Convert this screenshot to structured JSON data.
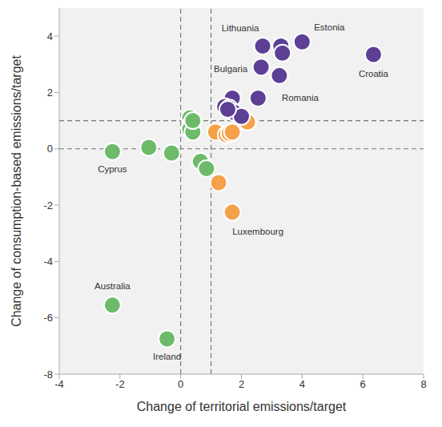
{
  "chart_data": {
    "type": "scatter",
    "x_label": "Change of territorial emissions/target",
    "y_label": "Change of consumption-based emissions/target",
    "xlim": [
      -4,
      8
    ],
    "ylim": [
      -8,
      5
    ],
    "xticks": [
      -4,
      -2,
      0,
      2,
      4,
      6,
      8
    ],
    "yticks": [
      -8,
      -6,
      -4,
      -2,
      0,
      2,
      4
    ],
    "grid": false,
    "reference_lines": {
      "x": [
        0,
        1
      ],
      "y": [
        0,
        1
      ]
    },
    "series": [
      {
        "color": "#6dbb6a",
        "marker": "circle",
        "x": [
          -2.25,
          -1.05,
          -0.3,
          0.65,
          0.85,
          0.3,
          0.35,
          0.3,
          0.4,
          0.4,
          -2.25,
          -0.45
        ],
        "y": [
          -0.1,
          0.05,
          -0.15,
          -0.45,
          -0.7,
          1.1,
          0.9,
          0.7,
          0.6,
          1.0,
          -5.55,
          -6.75
        ],
        "labels": [
          "Cyprus",
          null,
          null,
          null,
          null,
          null,
          null,
          null,
          null,
          null,
          "Australia",
          "Ireland"
        ]
      },
      {
        "color": "#f5a149",
        "marker": "circle",
        "x": [
          1.15,
          1.5,
          1.6,
          1.7,
          2.1,
          2.2,
          1.25,
          1.7
        ],
        "y": [
          0.6,
          0.5,
          0.55,
          0.6,
          1.0,
          0.95,
          -1.2,
          -2.25
        ],
        "labels": [
          null,
          null,
          null,
          null,
          null,
          null,
          null,
          "Luxembourg"
        ]
      },
      {
        "color": "#5d3f96",
        "marker": "circle",
        "x": [
          2.7,
          3.3,
          3.35,
          4.0,
          6.35,
          2.65,
          3.25,
          2.55,
          1.7,
          1.45,
          1.6,
          1.75,
          2.0,
          1.55
        ],
        "y": [
          3.65,
          3.65,
          3.4,
          3.8,
          3.35,
          2.9,
          2.6,
          1.8,
          1.8,
          1.5,
          1.45,
          1.3,
          1.15,
          1.4
        ],
        "labels": [
          "Lithuania",
          null,
          null,
          "Estonia",
          "Croatia",
          "Bulgaria",
          "Romania",
          null,
          null,
          null,
          null,
          null,
          null,
          null
        ]
      }
    ]
  }
}
